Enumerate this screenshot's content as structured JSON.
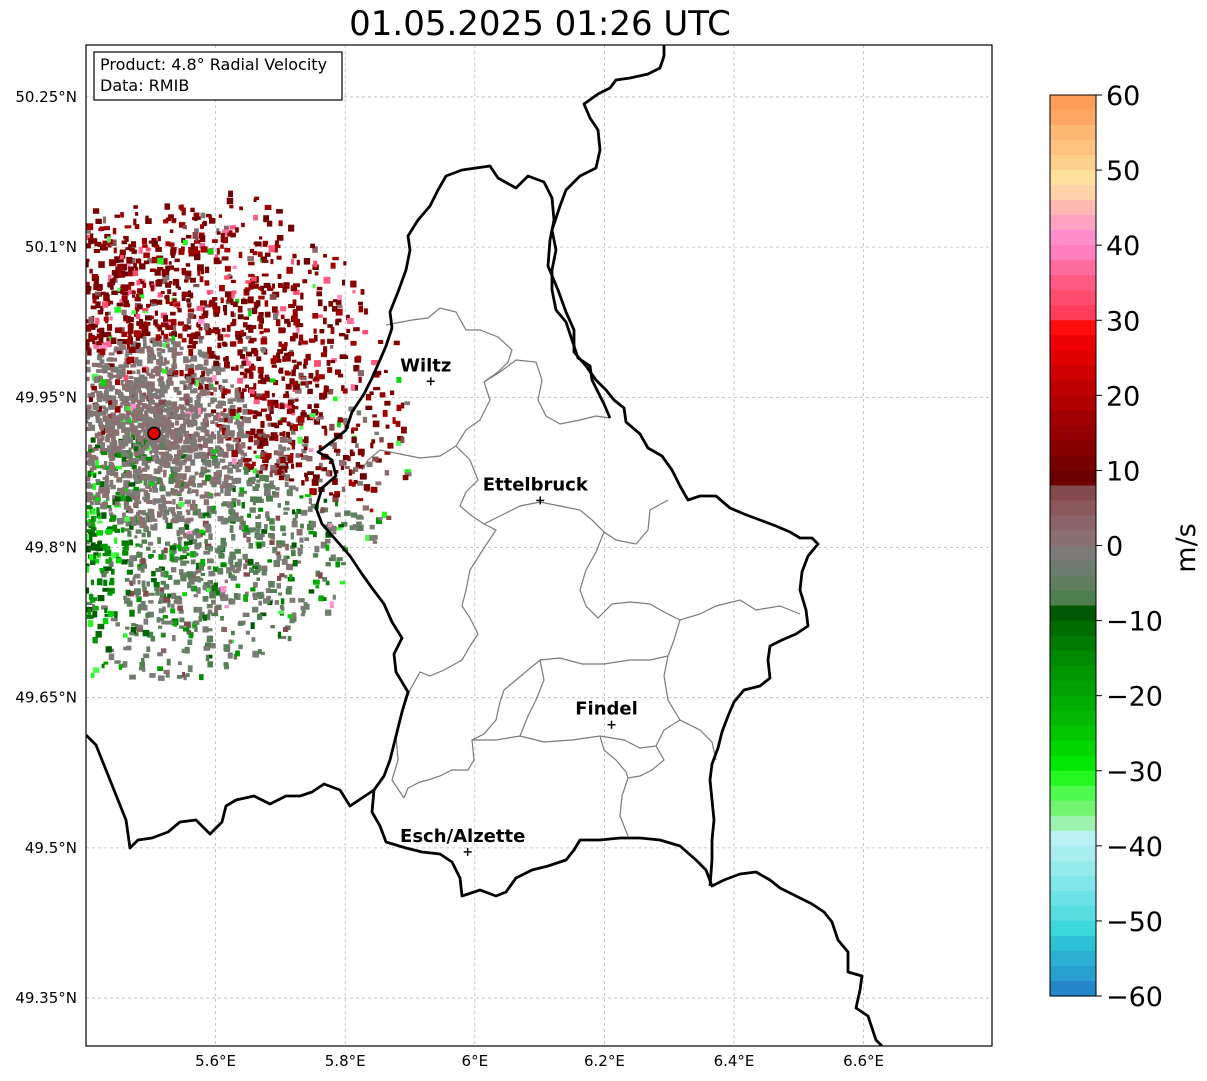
{
  "title": "01.05.2025 01:26 UTC",
  "info_box": {
    "product": "Product: 4.8° Radial Velocity",
    "data": "Data: RMIB"
  },
  "map": {
    "lon_range": [
      5.4,
      6.8
    ],
    "lat_range": [
      49.3,
      50.3
    ],
    "x_ticks": [
      {
        "value": 5.6,
        "label": "5.6°E"
      },
      {
        "value": 5.8,
        "label": "5.8°E"
      },
      {
        "value": 6.0,
        "label": "6°E"
      },
      {
        "value": 6.2,
        "label": "6.2°E"
      },
      {
        "value": 6.4,
        "label": "6.4°E"
      },
      {
        "value": 6.6,
        "label": "6.6°E"
      }
    ],
    "y_ticks": [
      {
        "value": 50.25,
        "label": "50.25°N"
      },
      {
        "value": 50.1,
        "label": "50.1°N"
      },
      {
        "value": 49.95,
        "label": "49.95°N"
      },
      {
        "value": 49.8,
        "label": "49.8°N"
      },
      {
        "value": 49.65,
        "label": "49.65°N"
      },
      {
        "value": 49.5,
        "label": "49.5°N"
      },
      {
        "value": 49.35,
        "label": "49.35°N"
      }
    ],
    "grid": true,
    "radar_site": {
      "lon": 5.505,
      "lat": 49.914,
      "color": "#e00000"
    },
    "cities": [
      {
        "name": "Wiltz",
        "lon": 5.932,
        "lat": 49.966
      },
      {
        "name": "Ettelbruck",
        "lon": 6.101,
        "lat": 49.847
      },
      {
        "name": "Findel",
        "lon": 6.211,
        "lat": 49.623
      },
      {
        "name": "Esch/Alzette",
        "lon": 5.989,
        "lat": 49.496
      }
    ]
  },
  "colorbar": {
    "unit": "m/s",
    "min": -60,
    "max": 60,
    "tick_values": [
      60,
      50,
      40,
      30,
      20,
      10,
      0,
      -10,
      -20,
      -30,
      -40,
      -50,
      -60
    ],
    "tick_labels": [
      "60",
      "50",
      "40",
      "30",
      "20",
      "10",
      "0",
      "−10",
      "−20",
      "−30",
      "−40",
      "−50",
      "−60"
    ],
    "colors_top_to_bottom": [
      "#ff9e59",
      "#ffa865",
      "#ffb774",
      "#ffc27f",
      "#ffcf8c",
      "#ffe19c",
      "#ffd2a8",
      "#ffb9b2",
      "#ffa2c1",
      "#ff8ccb",
      "#ff7fbe",
      "#ff6b9d",
      "#ff5a84",
      "#ff4d6e",
      "#ff3d5a",
      "#ff0d0d",
      "#ee0000",
      "#e00000",
      "#d10000",
      "#c00000",
      "#b20000",
      "#a20000",
      "#940000",
      "#860000",
      "#780000",
      "#6c0000",
      "#844a4e",
      "#8a575b",
      "#8b6469",
      "#8c7070",
      "#7d7b78",
      "#6e7e6d",
      "#5f7f5f",
      "#4f7f4f",
      "#005900",
      "#006b00",
      "#007b00",
      "#008a00",
      "#009600",
      "#00a100",
      "#00ad00",
      "#00b900",
      "#00c700",
      "#00d800",
      "#00e800",
      "#22f722",
      "#4ff94f",
      "#72f472",
      "#9ef2b0",
      "#b9f2f2",
      "#a8eef0",
      "#95eaec",
      "#80e6e9",
      "#6be2e6",
      "#55dde2",
      "#3bd8dd",
      "#2ec0d4",
      "#2bb0d2",
      "#28a0cf",
      "#2286c8"
    ]
  }
}
